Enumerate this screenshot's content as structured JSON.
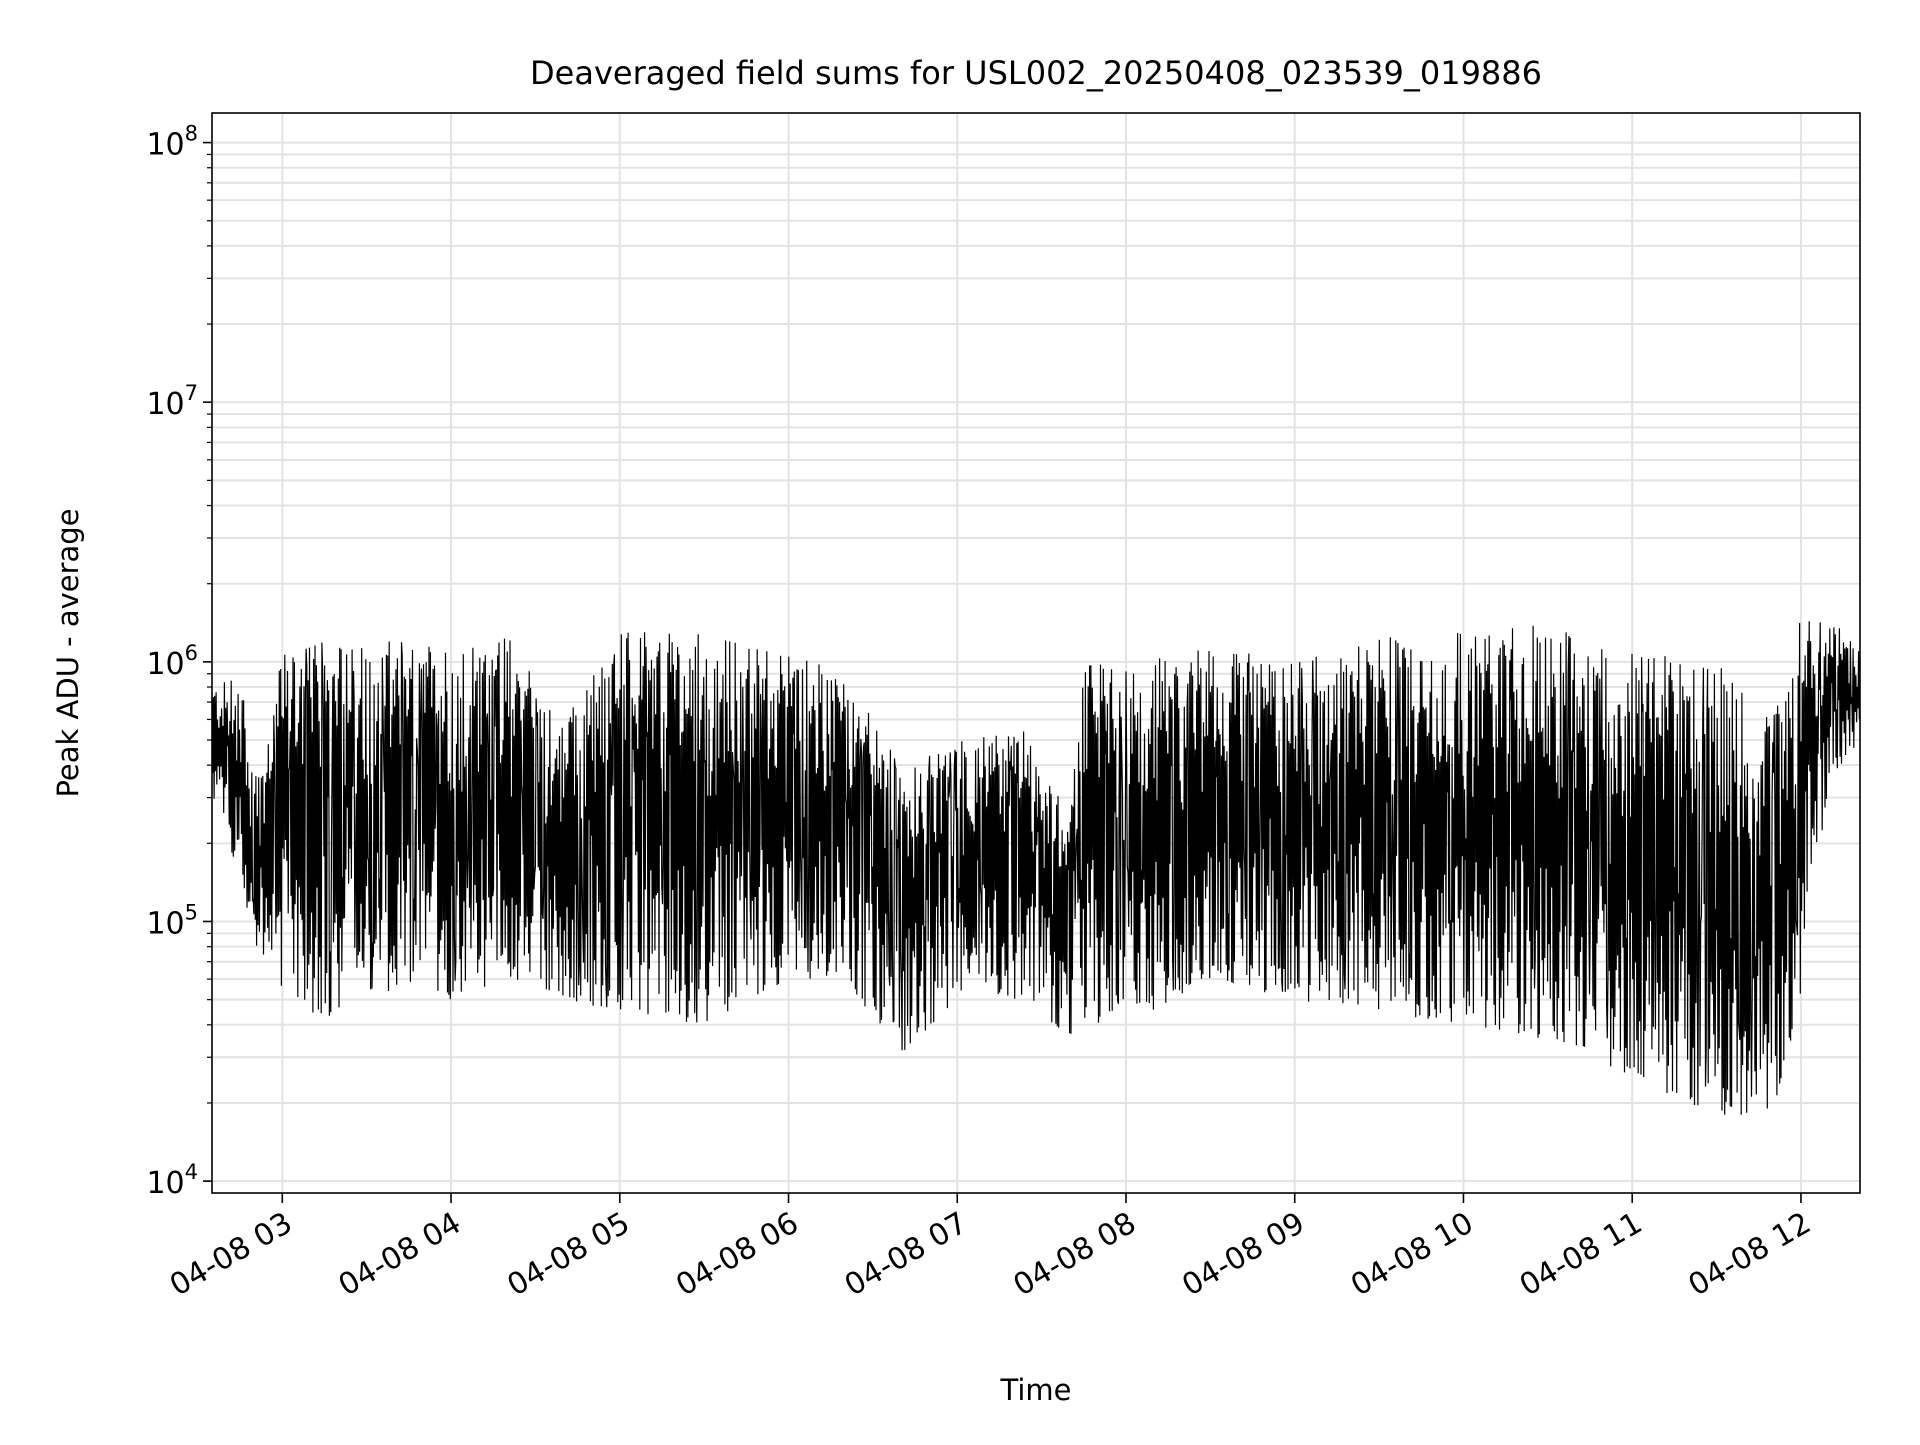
{
  "chart_data": {
    "type": "line",
    "title": "Deaveraged field sums for USL002_20250408_023539_019886",
    "xlabel": "Time",
    "ylabel": "Peak ADU - average",
    "x_axis": {
      "type": "time",
      "range": [
        "2025-04-08T02:35",
        "2025-04-08T12:21"
      ],
      "ticks": [
        {
          "value": "2025-04-08T03:00",
          "label": "04-08 03"
        },
        {
          "value": "2025-04-08T04:00",
          "label": "04-08 04"
        },
        {
          "value": "2025-04-08T05:00",
          "label": "04-08 05"
        },
        {
          "value": "2025-04-08T06:00",
          "label": "04-08 06"
        },
        {
          "value": "2025-04-08T07:00",
          "label": "04-08 07"
        },
        {
          "value": "2025-04-08T08:00",
          "label": "04-08 08"
        },
        {
          "value": "2025-04-08T09:00",
          "label": "04-08 09"
        },
        {
          "value": "2025-04-08T10:00",
          "label": "04-08 10"
        },
        {
          "value": "2025-04-08T11:00",
          "label": "04-08 11"
        },
        {
          "value": "2025-04-08T12:00",
          "label": "04-08 12"
        }
      ]
    },
    "y_axis": {
      "scale": "log",
      "range": [
        9000,
        130000000
      ],
      "ticks": [
        {
          "value": 10000,
          "base": "10",
          "exp": "4"
        },
        {
          "value": 100000,
          "base": "10",
          "exp": "5"
        },
        {
          "value": 1000000,
          "base": "10",
          "exp": "6"
        },
        {
          "value": 10000000,
          "base": "10",
          "exp": "7"
        },
        {
          "value": 100000000,
          "base": "10",
          "exp": "8"
        }
      ]
    },
    "grid": true,
    "series": [
      {
        "color": "#000000",
        "envelope": [
          {
            "time": "2025-04-08T02:35",
            "low": 300000,
            "high": 800000
          },
          {
            "time": "2025-04-08T02:45",
            "low": 150000,
            "high": 900000
          },
          {
            "time": "2025-04-08T02:50",
            "low": 80000,
            "high": 350000
          },
          {
            "time": "2025-04-08T03:00",
            "low": 55000,
            "high": 1100000
          },
          {
            "time": "2025-04-08T03:15",
            "low": 40000,
            "high": 1200000
          },
          {
            "time": "2025-04-08T03:30",
            "low": 55000,
            "high": 1200000
          },
          {
            "time": "2025-04-08T04:00",
            "low": 50000,
            "high": 1200000
          },
          {
            "time": "2025-04-08T04:20",
            "low": 60000,
            "high": 1300000
          },
          {
            "time": "2025-04-08T04:40",
            "low": 50000,
            "high": 600000
          },
          {
            "time": "2025-04-08T05:00",
            "low": 45000,
            "high": 1300000
          },
          {
            "time": "2025-04-08T05:30",
            "low": 40000,
            "high": 1300000
          },
          {
            "time": "2025-04-08T06:00",
            "low": 60000,
            "high": 1100000
          },
          {
            "time": "2025-04-08T06:20",
            "low": 60000,
            "high": 900000
          },
          {
            "time": "2025-04-08T06:40",
            "low": 30000,
            "high": 400000
          },
          {
            "time": "2025-04-08T07:00",
            "low": 50000,
            "high": 500000
          },
          {
            "time": "2025-04-08T07:25",
            "low": 50000,
            "high": 550000
          },
          {
            "time": "2025-04-08T07:40",
            "low": 35000,
            "high": 250000
          },
          {
            "time": "2025-04-08T07:45",
            "low": 40000,
            "high": 1000000
          },
          {
            "time": "2025-04-08T08:00",
            "low": 40000,
            "high": 1000000
          },
          {
            "time": "2025-04-08T08:30",
            "low": 60000,
            "high": 1150000
          },
          {
            "time": "2025-04-08T09:00",
            "low": 50000,
            "high": 1000000
          },
          {
            "time": "2025-04-08T09:30",
            "low": 45000,
            "high": 1300000
          },
          {
            "time": "2025-04-08T10:00",
            "low": 40000,
            "high": 1300000
          },
          {
            "time": "2025-04-08T10:30",
            "low": 35000,
            "high": 1400000
          },
          {
            "time": "2025-04-08T11:00",
            "low": 25000,
            "high": 1100000
          },
          {
            "time": "2025-04-08T11:30",
            "low": 18000,
            "high": 1000000
          },
          {
            "time": "2025-04-08T11:50",
            "low": 18000,
            "high": 600000
          },
          {
            "time": "2025-04-08T12:00",
            "low": 50000,
            "high": 1500000
          },
          {
            "time": "2025-04-08T12:10",
            "low": 350000,
            "high": 1500000
          },
          {
            "time": "2025-04-08T12:21",
            "low": 500000,
            "high": 1100000
          }
        ]
      }
    ]
  }
}
